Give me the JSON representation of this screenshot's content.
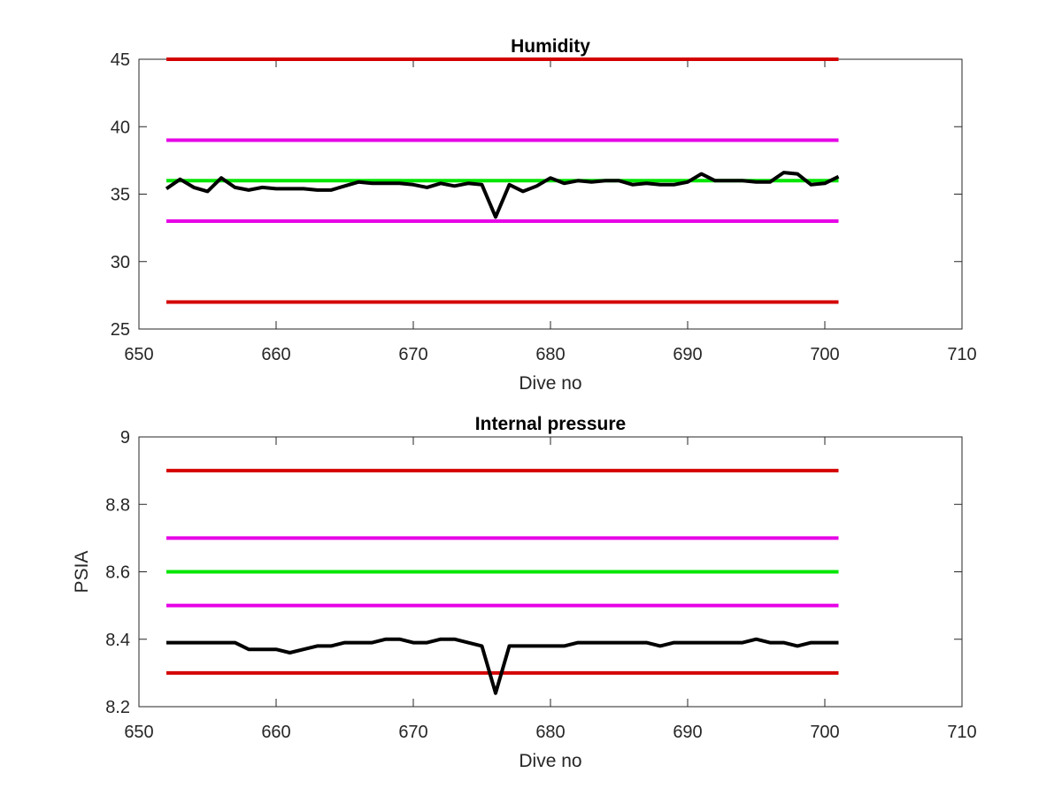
{
  "chart_data": [
    {
      "type": "line",
      "title": "Humidity",
      "xlabel": "Dive no",
      "ylabel": "",
      "xlim": [
        650,
        710
      ],
      "ylim": [
        25,
        45
      ],
      "xticks": [
        650,
        660,
        670,
        680,
        690,
        700,
        710
      ],
      "yticks": [
        25,
        30,
        35,
        40,
        45
      ],
      "x_tick_labels": [
        "650",
        "660",
        "670",
        "680",
        "690",
        "700",
        "710"
      ],
      "y_tick_labels": [
        "25",
        "30",
        "35",
        "40",
        "45"
      ],
      "grid": false,
      "reference_lines": [
        {
          "y": 45,
          "x": [
            652,
            701
          ],
          "color": "#d40000"
        },
        {
          "y": 39,
          "x": [
            652,
            701
          ],
          "color": "#e600e6"
        },
        {
          "y": 36,
          "x": [
            652,
            701
          ],
          "color": "#00e600"
        },
        {
          "y": 33,
          "x": [
            652,
            701
          ],
          "color": "#e600e6"
        },
        {
          "y": 27,
          "x": [
            652,
            701
          ],
          "color": "#d40000"
        }
      ],
      "series": [
        {
          "color": "#000000",
          "x": [
            652,
            653,
            654,
            655,
            656,
            657,
            658,
            659,
            660,
            661,
            662,
            663,
            664,
            665,
            666,
            667,
            668,
            669,
            670,
            671,
            672,
            673,
            674,
            675,
            676,
            677,
            678,
            679,
            680,
            681,
            682,
            683,
            684,
            685,
            686,
            687,
            688,
            689,
            690,
            691,
            692,
            693,
            694,
            695,
            696,
            697,
            698,
            699,
            700,
            701
          ],
          "y": [
            35.4,
            36.1,
            35.5,
            35.2,
            36.2,
            35.5,
            35.3,
            35.5,
            35.4,
            35.4,
            35.4,
            35.3,
            35.3,
            35.6,
            35.9,
            35.8,
            35.8,
            35.8,
            35.7,
            35.5,
            35.8,
            35.6,
            35.8,
            35.7,
            33.3,
            35.7,
            35.2,
            35.6,
            36.2,
            35.8,
            36.0,
            35.9,
            36.0,
            36.0,
            35.7,
            35.8,
            35.7,
            35.7,
            35.9,
            36.5,
            36.0,
            36.0,
            36.0,
            35.9,
            35.9,
            36.6,
            36.5,
            35.7,
            35.8,
            36.3
          ]
        }
      ]
    },
    {
      "type": "line",
      "title": "Internal pressure",
      "xlabel": "Dive no",
      "ylabel": "PSIA",
      "xlim": [
        650,
        710
      ],
      "ylim": [
        8.2,
        9
      ],
      "xticks": [
        650,
        660,
        670,
        680,
        690,
        700,
        710
      ],
      "yticks": [
        8.2,
        8.4,
        8.6,
        8.8,
        9
      ],
      "x_tick_labels": [
        "650",
        "660",
        "670",
        "680",
        "690",
        "700",
        "710"
      ],
      "y_tick_labels": [
        "8.2",
        "8.4",
        "8.6",
        "8.8",
        "9"
      ],
      "grid": false,
      "reference_lines": [
        {
          "y": 8.9,
          "x": [
            652,
            701
          ],
          "color": "#d40000"
        },
        {
          "y": 8.7,
          "x": [
            652,
            701
          ],
          "color": "#e600e6"
        },
        {
          "y": 8.6,
          "x": [
            652,
            701
          ],
          "color": "#00e600"
        },
        {
          "y": 8.5,
          "x": [
            652,
            701
          ],
          "color": "#e600e6"
        },
        {
          "y": 8.3,
          "x": [
            652,
            701
          ],
          "color": "#d40000"
        }
      ],
      "series": [
        {
          "color": "#000000",
          "x": [
            652,
            653,
            654,
            655,
            656,
            657,
            658,
            659,
            660,
            661,
            662,
            663,
            664,
            665,
            666,
            667,
            668,
            669,
            670,
            671,
            672,
            673,
            674,
            675,
            676,
            677,
            678,
            679,
            680,
            681,
            682,
            683,
            684,
            685,
            686,
            687,
            688,
            689,
            690,
            691,
            692,
            693,
            694,
            695,
            696,
            697,
            698,
            699,
            700,
            701
          ],
          "y": [
            8.39,
            8.39,
            8.39,
            8.39,
            8.39,
            8.39,
            8.37,
            8.37,
            8.37,
            8.36,
            8.37,
            8.38,
            8.38,
            8.39,
            8.39,
            8.39,
            8.4,
            8.4,
            8.39,
            8.39,
            8.4,
            8.4,
            8.39,
            8.38,
            8.24,
            8.38,
            8.38,
            8.38,
            8.38,
            8.38,
            8.39,
            8.39,
            8.39,
            8.39,
            8.39,
            8.39,
            8.38,
            8.39,
            8.39,
            8.39,
            8.39,
            8.39,
            8.39,
            8.4,
            8.39,
            8.39,
            8.38,
            8.39,
            8.39,
            8.39
          ]
        }
      ]
    }
  ]
}
